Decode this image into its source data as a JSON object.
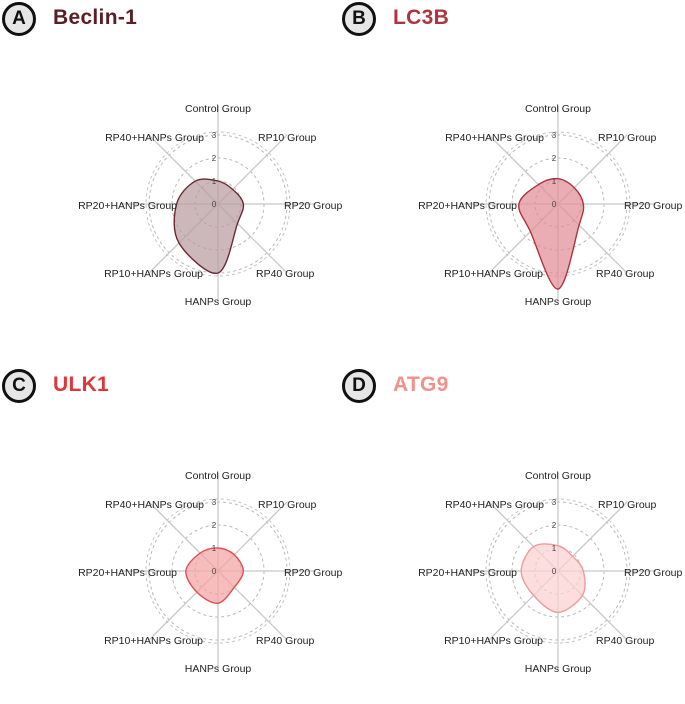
{
  "chart_data": [
    {
      "type": "radar",
      "panel_label": "A",
      "title": "Beclin-1",
      "title_color": "#5a1e24",
      "fill_color": "#b99c9f",
      "stroke_color": "#6b2a30",
      "categories": [
        "Control Group",
        "RP10 Group",
        "RP20 Group",
        "RP40 Group",
        "HANPs Group",
        "RP10+HANPs Group",
        "RP20+HANPs Group",
        "RP40+HANPs Group"
      ],
      "values": [
        1.0,
        0.9,
        1.1,
        1.2,
        3.0,
        2.4,
        1.8,
        1.4
      ],
      "r_ticks": [
        0,
        1,
        2,
        3
      ],
      "rlim": [
        0,
        3
      ]
    },
    {
      "type": "radar",
      "panel_label": "B",
      "title": "LC3B",
      "title_color": "#b0343e",
      "fill_color": "#e08e96",
      "stroke_color": "#b0343e",
      "categories": [
        "Control Group",
        "RP10 Group",
        "RP20 Group",
        "RP40 Group",
        "HANPs Group",
        "RP10+HANPs Group",
        "RP20+HANPs Group",
        "RP40+HANPs Group"
      ],
      "values": [
        1.1,
        1.0,
        1.1,
        1.3,
        3.7,
        1.7,
        1.7,
        1.2
      ],
      "r_ticks": [
        0,
        1,
        2,
        3
      ],
      "rlim": [
        0,
        3
      ]
    },
    {
      "type": "radar",
      "panel_label": "C",
      "title": "ULK1",
      "title_color": "#e0383a",
      "fill_color": "#f4a3a3",
      "stroke_color": "#e05050",
      "categories": [
        "Control Group",
        "RP10 Group",
        "RP20 Group",
        "RP40 Group",
        "HANPs Group",
        "RP10+HANPs Group",
        "RP20+HANPs Group",
        "RP40+HANPs Group"
      ],
      "values": [
        1.0,
        1.0,
        1.1,
        1.0,
        1.4,
        1.3,
        1.4,
        1.1
      ],
      "r_ticks": [
        0,
        1,
        2,
        3
      ],
      "rlim": [
        0,
        3
      ]
    },
    {
      "type": "radar",
      "panel_label": "D",
      "title": "ATG9",
      "title_color": "#f2908a",
      "fill_color": "#fbd1d1",
      "stroke_color": "#f29a96",
      "categories": [
        "Control Group",
        "RP10 Group",
        "RP20 Group",
        "RP40 Group",
        "HANPs Group",
        "RP10+HANPs Group",
        "RP20+HANPs Group",
        "RP40+HANPs Group"
      ],
      "values": [
        1.1,
        0.9,
        1.1,
        1.5,
        1.8,
        1.5,
        1.6,
        1.5
      ],
      "r_ticks": [
        0,
        1,
        2,
        3
      ],
      "rlim": [
        0,
        3
      ]
    }
  ]
}
